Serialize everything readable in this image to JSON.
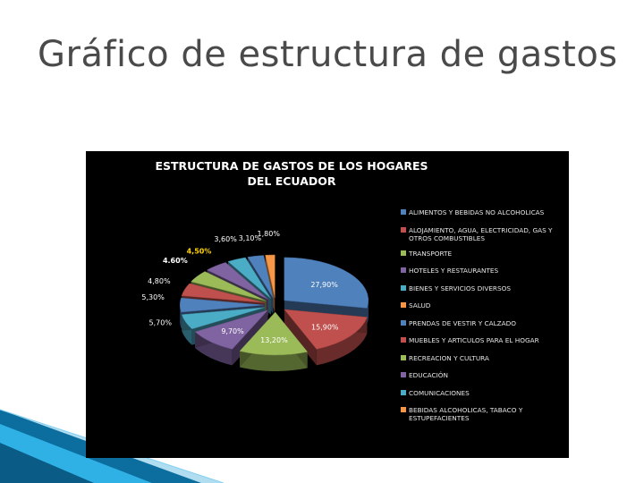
{
  "slide": {
    "title": "Gráfico de estructura de gastos"
  },
  "chart_data": {
    "type": "pie",
    "style": "3d-exploded",
    "title": "ESTRUCTURA DE GASTOS DE LOS HOGARES DEL ECUADOR",
    "legend_position": "right",
    "background": "#000000",
    "slices": [
      {
        "label": "ALIMENTOS Y BEBIDAS NO ALCOHOLICAS",
        "value_label": "27,90%",
        "value": 27.9,
        "color": "#4f81bd"
      },
      {
        "label": "SALUD",
        "value_label": "15,90%",
        "value": 15.9,
        "color": "#c0504d"
      },
      {
        "label": "RECREACION Y CULTURA",
        "value_label": "13,20%",
        "value": 13.2,
        "color": "#9bbb59"
      },
      {
        "label": "TRANSPORTE",
        "value_label": "9,70%",
        "value": 9.7,
        "color": "#8064a2"
      },
      {
        "label": "COMUNICACIONES",
        "value_label": "5,70%",
        "value": 5.7,
        "color": "#4bacc6"
      },
      {
        "label": "BIENES Y SERVICIOS DIVERSOS",
        "value_label": "5,30%",
        "value": 5.3,
        "color": "#4f81bd"
      },
      {
        "label": "MUEBLES Y ARTICULOS PARA EL HOGAR",
        "value_label": "4,80%",
        "value": 4.8,
        "color": "#c0504d"
      },
      {
        "label": "ALOJAMIENTO, AGUA, ELECTRICIDAD, GAS Y OTROS COMBUSTIBLES",
        "value_label": "4.60%",
        "value": 4.6,
        "color": "#9bbb59"
      },
      {
        "label": "HOTELES Y RESTAURANTES",
        "value_label": "4,50%",
        "value": 4.5,
        "color": "#8064a2"
      },
      {
        "label": "EDUCACIÓN",
        "value_label": "3,60%",
        "value": 3.6,
        "color": "#4bacc6"
      },
      {
        "label": "PRENDAS DE VESTIR Y CALZADO",
        "value_label": "3,10%",
        "value": 3.1,
        "color": "#4f81bd"
      },
      {
        "label": "BEBIDAS ALCOHOLICAS, TABACO Y ESTUPEFACIENTES",
        "value_label": "1,80%",
        "value": 1.8,
        "color": "#f79646"
      }
    ],
    "legend": [
      {
        "label": "ALIMENTOS Y BEBIDAS NO ALCOHOLICAS",
        "color": "#4f81bd",
        "lines": 1
      },
      {
        "label": "ALOJAMIENTO, AGUA, ELECTRICIDAD, GAS Y OTROS COMBUSTIBLES",
        "color": "#c0504d",
        "lines": 2
      },
      {
        "label": "TRANSPORTE",
        "color": "#9bbb59",
        "lines": 1
      },
      {
        "label": "HOTELES Y RESTAURANTES",
        "color": "#8064a2",
        "lines": 1
      },
      {
        "label": "BIENES Y SERVICIOS DIVERSOS",
        "color": "#4bacc6",
        "lines": 1
      },
      {
        "label": "SALUD",
        "color": "#f79646",
        "lines": 1
      },
      {
        "label": "PRENDAS DE VESTIR Y CALZADO",
        "color": "#4f81bd",
        "lines": 1
      },
      {
        "label": "MUEBLES Y ARTICULOS PARA EL HOGAR",
        "color": "#c0504d",
        "lines": 1
      },
      {
        "label": "RECREACION Y CULTURA",
        "color": "#9bbb59",
        "lines": 1
      },
      {
        "label": "EDUCACIÓN",
        "color": "#8064a2",
        "lines": 1
      },
      {
        "label": "COMUNICACIONES",
        "color": "#4bacc6",
        "lines": 1
      },
      {
        "label": "BEBIDAS ALCOHOLICAS, TABACO Y ESTUPEFACIENTES",
        "color": "#f79646",
        "lines": 2
      }
    ]
  }
}
